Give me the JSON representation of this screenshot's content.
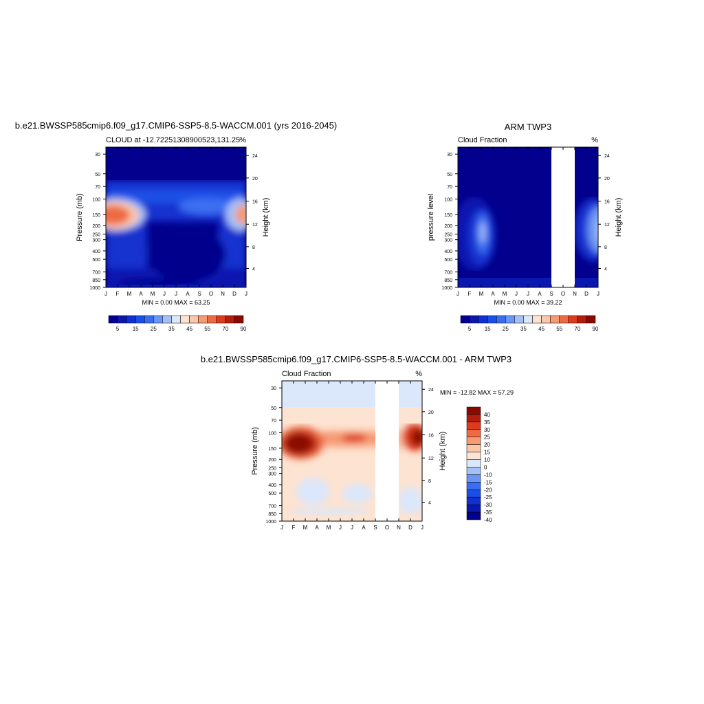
{
  "chart_data": [
    {
      "type": "heatmap",
      "title": "b.e21.BWSSP585cmip6.f09_g17.CMIP6-SSP5-8.5-WACCM.001 (yrs 2016-2045)",
      "subtitle_left": "CLOUD at -12.72251308900523,131.25",
      "subtitle_right": "%",
      "ylabel": "Pressure (mb)",
      "ylabel_right": "Height (km)",
      "xticks": [
        "J",
        "F",
        "M",
        "A",
        "M",
        "J",
        "J",
        "A",
        "S",
        "O",
        "N",
        "D",
        "J"
      ],
      "yticks": [
        "30",
        "50",
        "70",
        "100",
        "150",
        "200",
        "250",
        "300",
        "400",
        "500",
        "700",
        "850",
        "1000"
      ],
      "yticks_right": [
        "24",
        "20",
        "16",
        "12",
        "8",
        "4"
      ],
      "minmax_text": "MIN =   0.00 MAX =  63.25",
      "min": 0.0,
      "max": 63.25,
      "missing_months": [],
      "colorbar_ticks": [
        "5",
        "15",
        "25",
        "35",
        "45",
        "55",
        "70",
        "90"
      ]
    },
    {
      "type": "heatmap",
      "title": "ARM TWP3",
      "subtitle_left": "Cloud Fraction",
      "subtitle_right": "%",
      "ylabel": "pressure level",
      "ylabel_right": "Height (km)",
      "xticks": [
        "J",
        "F",
        "M",
        "A",
        "M",
        "J",
        "J",
        "A",
        "S",
        "O",
        "N",
        "D",
        "J"
      ],
      "yticks": [
        "30",
        "50",
        "70",
        "100",
        "150",
        "200",
        "250",
        "300",
        "400",
        "500",
        "700",
        "850",
        "1000"
      ],
      "yticks_right": [
        "24",
        "20",
        "16",
        "12",
        "8",
        "4"
      ],
      "minmax_text": "MIN =   0.00 MAX =  39.22",
      "min": 0.0,
      "max": 39.22,
      "missing_months": [
        "S",
        "O"
      ],
      "colorbar_ticks": [
        "5",
        "15",
        "25",
        "35",
        "45",
        "55",
        "70",
        "90"
      ]
    },
    {
      "type": "heatmap",
      "title": "b.e21.BWSSP585cmip6.f09_g17.CMIP6-SSP5-8.5-WACCM.001 - ARM TWP3",
      "subtitle_left": "Cloud Fraction",
      "subtitle_right": "%",
      "ylabel": "Pressure (mb)",
      "ylabel_right": "Height (km)",
      "xticks": [
        "J",
        "F",
        "M",
        "A",
        "M",
        "J",
        "J",
        "A",
        "S",
        "O",
        "N",
        "D",
        "J"
      ],
      "yticks": [
        "30",
        "50",
        "70",
        "100",
        "150",
        "200",
        "250",
        "300",
        "400",
        "500",
        "700",
        "850",
        "1000"
      ],
      "yticks_right": [
        "24",
        "20",
        "16",
        "12",
        "8",
        "4"
      ],
      "minmax_text": "MIN = -12.82 MAX =  57.29",
      "min": -12.82,
      "max": 57.29,
      "missing_months": [
        "S",
        "O"
      ],
      "colorbar_ticks": [
        "40",
        "35",
        "30",
        "25",
        "20",
        "15",
        "10",
        "0",
        "-10",
        "-15",
        "-20",
        "-25",
        "-30",
        "-35",
        "-40"
      ]
    }
  ],
  "colors": {
    "sequential": [
      "#02008c",
      "#0b18b0",
      "#1230cf",
      "#1a4fe6",
      "#3a6ef2",
      "#6a95f5",
      "#a5c0f7",
      "#dbe7fb",
      "#fde3d1",
      "#fbc5a8",
      "#f59a72",
      "#ed6a43",
      "#de3b1c",
      "#b41d0b",
      "#8a0a02"
    ],
    "diverging": [
      "#8a0a02",
      "#b41d0b",
      "#de3b1c",
      "#ed6a43",
      "#f59a72",
      "#fbc5a8",
      "#fde3d1",
      "#dbe7fb",
      "#a5c0f7",
      "#6a95f5",
      "#3a6ef2",
      "#1a4fe6",
      "#1230cf",
      "#0b18b0",
      "#02008c"
    ],
    "missing": "#ffffff"
  }
}
